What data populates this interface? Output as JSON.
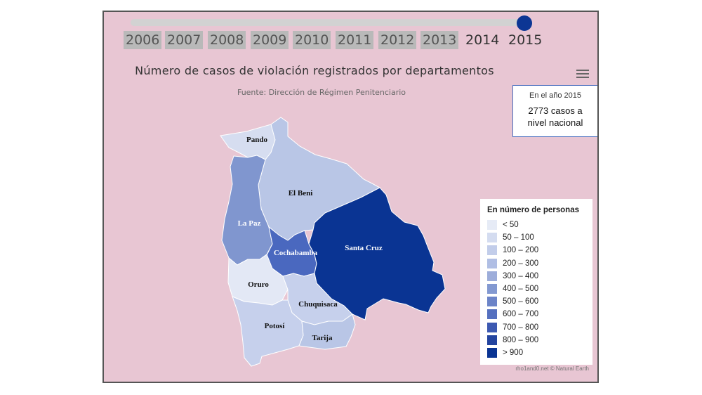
{
  "timeline": {
    "years": [
      "2006",
      "2007",
      "2008",
      "2009",
      "2010",
      "2011",
      "2012",
      "2013",
      "2014",
      "2015"
    ],
    "selected": "2015",
    "progress": 1.0
  },
  "map": {
    "title": "Número de casos de violación registrados por departamentos",
    "subtitle": "Fuente: Dirección de Régimen Penitenciario",
    "credit": "rho1and0.net © Natural Earth",
    "regions": [
      {
        "name": "Pando",
        "color": "#d6ddf0",
        "label_color": "#111111"
      },
      {
        "name": "El Beni",
        "color": "#b9c6e6",
        "label_color": "#111111"
      },
      {
        "name": "La Paz",
        "color": "#8096cf",
        "label_color": "#ffffff"
      },
      {
        "name": "Cochabamba",
        "color": "#4a68bf",
        "label_color": "#ffffff"
      },
      {
        "name": "Santa Cruz",
        "color": "#0a3493",
        "label_color": "#ffffff"
      },
      {
        "name": "Oruro",
        "color": "#e3e8f5",
        "label_color": "#111111"
      },
      {
        "name": "Chuquisaca",
        "color": "#c6d0ec",
        "label_color": "#111111"
      },
      {
        "name": "Potosí",
        "color": "#c6d0ec",
        "label_color": "#111111"
      },
      {
        "name": "Tarija",
        "color": "#b9c6e6",
        "label_color": "#111111"
      }
    ]
  },
  "info_box": {
    "year_line": "En el año 2015",
    "total_line": "2773 casos a nivel nacional"
  },
  "legend": {
    "title": "En número de personas",
    "items": [
      {
        "label": "< 50",
        "color": "#e6ebf6"
      },
      {
        "label": "50 – 100",
        "color": "#d4dcf0"
      },
      {
        "label": "100 – 200",
        "color": "#c2cdea"
      },
      {
        "label": "200 – 300",
        "color": "#b0bee4"
      },
      {
        "label": "300 – 400",
        "color": "#9dadda"
      },
      {
        "label": "400 – 500",
        "color": "#8399d1"
      },
      {
        "label": "500 – 600",
        "color": "#6c84c8"
      },
      {
        "label": "600 – 700",
        "color": "#5570bf"
      },
      {
        "label": "700 – 800",
        "color": "#3c59b1"
      },
      {
        "label": "800 – 900",
        "color": "#23449f"
      },
      {
        "label": "> 900",
        "color": "#0a3493"
      }
    ]
  },
  "menu_icon": "hamburger-menu-icon"
}
